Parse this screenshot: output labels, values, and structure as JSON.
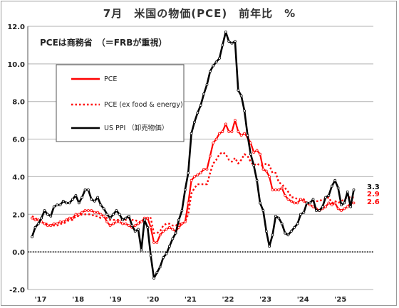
{
  "chart_data": {
    "type": "line",
    "title": "7月　米国の物価(PCE)　前年比　%",
    "note": "PCEは商務省　（＝FRBが重視）",
    "ylim": [
      -2.0,
      12.0
    ],
    "yticks": [
      "12.0",
      "10.0",
      "8.0",
      "6.0",
      "4.0",
      "2.0",
      "0.0",
      "-2.0"
    ],
    "xticks": [
      "'17",
      "'18",
      "'19",
      "'20",
      "'21",
      "'22",
      "'23",
      "'24",
      "'25"
    ],
    "x_start": "2017-01",
    "grid": true,
    "legend_position": "upper-left",
    "series": [
      {
        "name": "PCE",
        "color": "#ff0000",
        "style": "solid-marker",
        "values": [
          1.8,
          1.7,
          1.7,
          1.6,
          1.5,
          1.4,
          1.4,
          1.5,
          1.5,
          1.6,
          1.6,
          1.7,
          1.8,
          1.8,
          2.0,
          2.0,
          2.1,
          2.2,
          2.2,
          2.2,
          2.1,
          2.1,
          2.0,
          1.9,
          1.6,
          1.4,
          1.5,
          1.6,
          1.6,
          1.5,
          1.5,
          1.4,
          1.3,
          1.4,
          1.5,
          1.6,
          1.8,
          1.8,
          1.3,
          0.5,
          0.5,
          0.9,
          1.1,
          1.2,
          1.3,
          1.2,
          1.1,
          1.3,
          1.5,
          1.6,
          2.6,
          3.8,
          4.0,
          4.1,
          4.2,
          4.4,
          4.4,
          5.1,
          5.8,
          6.0,
          6.3,
          6.4,
          6.8,
          6.4,
          6.4,
          7.0,
          6.4,
          6.2,
          6.3,
          6.1,
          5.8,
          5.3,
          5.4,
          5.2,
          4.4,
          4.3,
          4.0,
          3.3,
          3.3,
          3.3,
          3.4,
          3.0,
          2.8,
          2.7,
          2.6,
          2.6,
          2.8,
          2.7,
          2.6,
          2.5,
          2.4,
          2.3,
          2.2,
          2.3,
          2.4,
          2.6,
          2.5,
          2.6,
          2.3,
          2.2,
          2.3,
          2.4,
          2.6,
          2.6
        ],
        "end_label": "2.6"
      },
      {
        "name": "PCE (ex food & energy)",
        "color": "#ff0000",
        "style": "dotted",
        "values": [
          1.9,
          1.8,
          1.7,
          1.6,
          1.5,
          1.5,
          1.4,
          1.4,
          1.4,
          1.5,
          1.5,
          1.6,
          1.7,
          1.7,
          1.9,
          1.9,
          2.0,
          2.0,
          2.0,
          2.0,
          1.9,
          1.9,
          1.8,
          1.9,
          1.8,
          1.7,
          1.7,
          1.7,
          1.7,
          1.7,
          1.7,
          1.8,
          1.7,
          1.7,
          1.6,
          1.6,
          1.7,
          1.8,
          1.8,
          1.0,
          1.0,
          1.1,
          1.4,
          1.5,
          1.5,
          1.4,
          1.4,
          1.5,
          1.5,
          1.6,
          2.0,
          3.1,
          3.4,
          3.6,
          3.6,
          3.6,
          3.6,
          4.2,
          4.7,
          4.9,
          5.2,
          5.3,
          5.2,
          4.9,
          4.8,
          5.0,
          4.7,
          4.9,
          5.2,
          5.1,
          4.8,
          4.6,
          4.7,
          4.6,
          4.6,
          4.7,
          4.6,
          4.2,
          4.2,
          3.7,
          3.6,
          3.4,
          3.2,
          2.9,
          2.9,
          2.8,
          2.8,
          2.8,
          2.6,
          2.6,
          2.7,
          2.7,
          2.7,
          2.8,
          2.8,
          2.9,
          2.6,
          2.7,
          2.6,
          2.7,
          2.8,
          2.9,
          2.9,
          2.9
        ],
        "end_label": "2.9"
      },
      {
        "name": "US PPI （卸売物価）",
        "color": "#000000",
        "style": "solid-marker",
        "values": [
          0.8,
          1.3,
          1.5,
          1.8,
          2.2,
          2.0,
          1.9,
          2.4,
          2.5,
          2.5,
          2.7,
          2.6,
          2.6,
          2.8,
          3.0,
          2.6,
          2.9,
          3.3,
          3.3,
          2.8,
          2.7,
          2.9,
          2.5,
          2.3,
          2.0,
          1.8,
          2.0,
          2.2,
          2.0,
          1.7,
          1.8,
          1.9,
          1.4,
          1.1,
          1.2,
          0.1,
          1.7,
          1.3,
          -0.2,
          -1.4,
          -1.1,
          -0.8,
          -0.3,
          -0.1,
          0.3,
          0.7,
          1.0,
          1.7,
          2.2,
          3.3,
          4.2,
          6.3,
          6.9,
          7.4,
          7.8,
          8.4,
          8.9,
          9.6,
          9.9,
          10.1,
          10.3,
          11.0,
          11.7,
          11.2,
          11.1,
          11.2,
          8.6,
          8.3,
          7.5,
          6.2,
          5.2,
          4.6,
          3.8,
          2.6,
          2.2,
          1.1,
          0.3,
          0.9,
          1.9,
          1.8,
          1.5,
          1.0,
          0.9,
          1.1,
          1.3,
          1.5,
          2.0,
          2.1,
          2.6,
          2.6,
          2.8,
          2.2,
          2.2,
          2.4,
          2.9,
          3.0,
          3.5,
          3.8,
          3.4,
          2.5,
          2.6,
          3.2,
          2.4,
          3.3
        ],
        "end_label": "3.3"
      }
    ]
  }
}
